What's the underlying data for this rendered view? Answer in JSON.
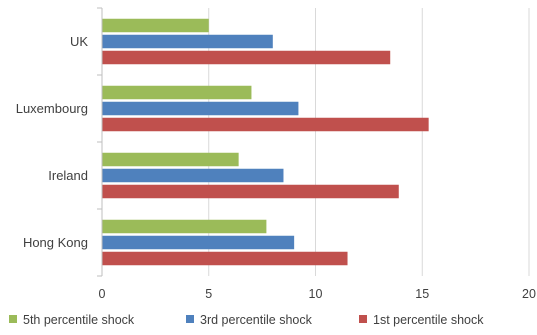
{
  "chart_data": {
    "type": "bar",
    "orientation": "horizontal",
    "categories": [
      "UK",
      "Luxembourg",
      "Ireland",
      "Hong Kong"
    ],
    "series": [
      {
        "name": "5th percentile shock",
        "color": "#9BBB59",
        "values": [
          5.0,
          7.0,
          6.4,
          7.7
        ]
      },
      {
        "name": "3rd percentile shock",
        "color": "#4F81BD",
        "values": [
          8.0,
          9.2,
          8.5,
          9.0
        ]
      },
      {
        "name": "1st percentile shock",
        "color": "#C0504D",
        "values": [
          13.5,
          15.3,
          13.9,
          11.5
        ]
      }
    ],
    "xlim": [
      0,
      20
    ],
    "xticks": [
      "0",
      "5",
      "10",
      "15",
      "20"
    ],
    "grid": "vertical",
    "legend": "bottom",
    "title": "",
    "xlabel": "",
    "ylabel": ""
  }
}
